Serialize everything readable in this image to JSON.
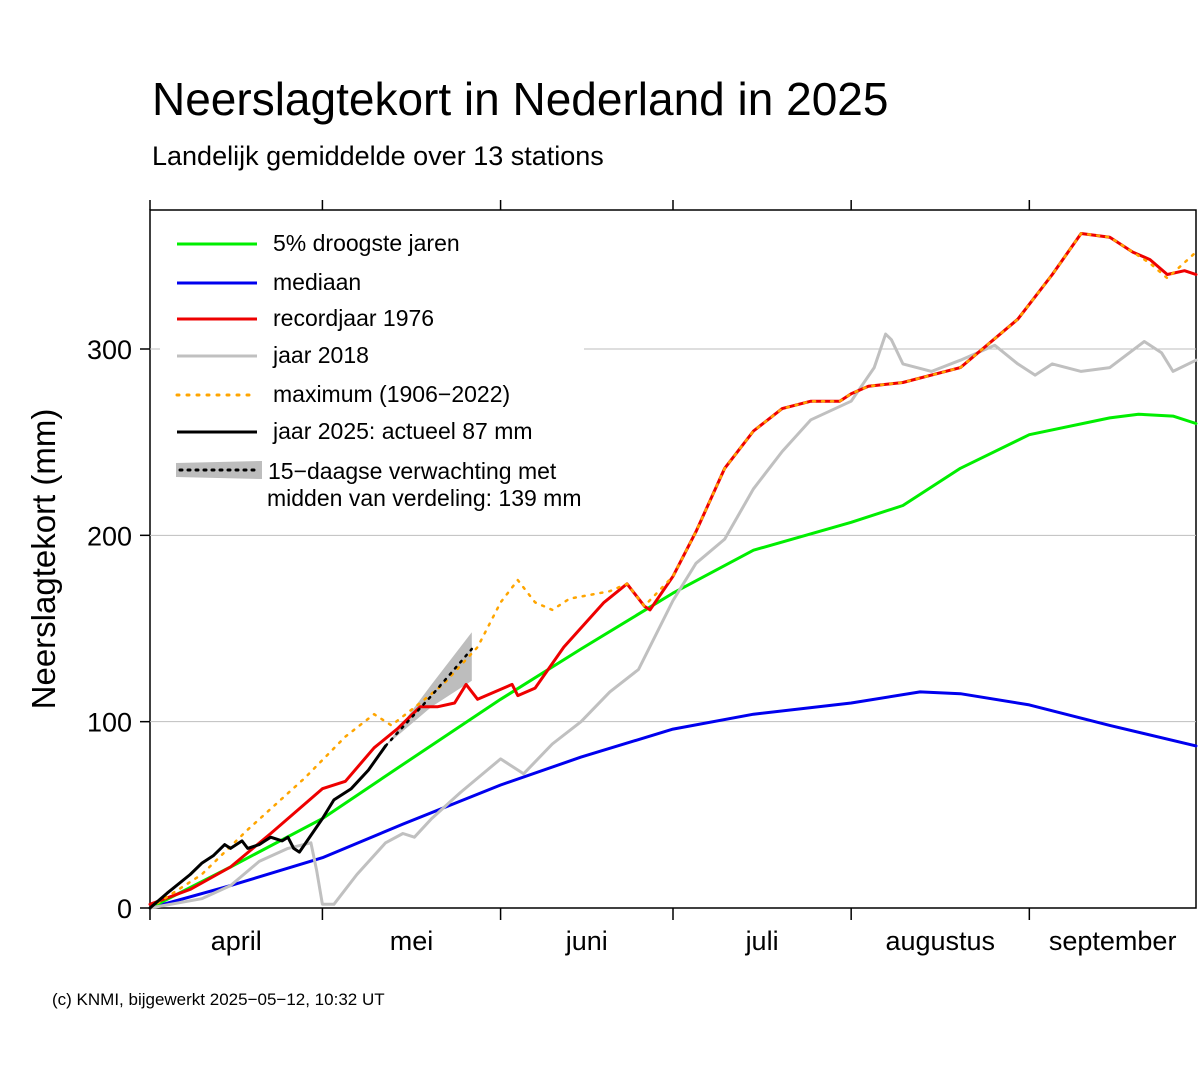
{
  "colors": {
    "p5": "#00ee00",
    "median": "#0000ee",
    "record1976": "#ee0000",
    "y2018": "#c0c0c0",
    "maximum": "#ffa500",
    "y2025": "#000000",
    "forecast_band": "#bdbdbd",
    "grid": "#bebebe"
  },
  "chart_data": {
    "type": "line",
    "title": "Neerslagtekort in Nederland in 2025",
    "subtitle": "Landelijk gemiddelde over 13 stations",
    "xlabel": "",
    "ylabel": "Neerslagtekort (mm)",
    "xlim": [
      "2025-04-01",
      "2025-09-30"
    ],
    "ylim": [
      0,
      375
    ],
    "yticks": [
      0,
      100,
      200,
      300
    ],
    "xticks": [
      "2025-04-01",
      "2025-05-01",
      "2025-06-01",
      "2025-07-01",
      "2025-08-01",
      "2025-09-01"
    ],
    "month_labels": [
      "april",
      "mei",
      "juni",
      "juli",
      "augustus",
      "september"
    ],
    "grid": true,
    "legend_position": "top-left",
    "legend": {
      "p5": "5% droogste jaren",
      "median": "mediaan",
      "record1976": "recordjaar 1976",
      "y2018": "jaar 2018",
      "maximum": "maximum (1906−2022)",
      "y2025": "jaar 2025: actueel 87 mm",
      "forecast_line1": "15−daagse verwachting met",
      "forecast_line2": "midden van verdeling: 139 mm"
    },
    "footer": "(c) KNMI, bijgewerkt 2025−05−12, 10:32 UT",
    "series": [
      {
        "key": "p5",
        "name": "5% droogste jaren",
        "points": [
          [
            "2025-04-01",
            0
          ],
          [
            "2025-04-15",
            22
          ],
          [
            "2025-05-01",
            48
          ],
          [
            "2025-05-15",
            77
          ],
          [
            "2025-06-01",
            112
          ],
          [
            "2025-06-15",
            139
          ],
          [
            "2025-07-01",
            169
          ],
          [
            "2025-07-15",
            192
          ],
          [
            "2025-08-01",
            207
          ],
          [
            "2025-08-10",
            216
          ],
          [
            "2025-08-20",
            236
          ],
          [
            "2025-09-01",
            254
          ],
          [
            "2025-09-15",
            263
          ],
          [
            "2025-09-20",
            265
          ],
          [
            "2025-09-26",
            264
          ],
          [
            "2025-09-30",
            260
          ]
        ]
      },
      {
        "key": "median",
        "name": "mediaan",
        "points": [
          [
            "2025-04-01",
            0
          ],
          [
            "2025-04-15",
            12
          ],
          [
            "2025-05-01",
            27
          ],
          [
            "2025-05-15",
            45
          ],
          [
            "2025-06-01",
            66
          ],
          [
            "2025-06-15",
            81
          ],
          [
            "2025-07-01",
            96
          ],
          [
            "2025-07-15",
            104
          ],
          [
            "2025-08-01",
            110
          ],
          [
            "2025-08-13",
            116
          ],
          [
            "2025-08-20",
            115
          ],
          [
            "2025-09-01",
            109
          ],
          [
            "2025-09-15",
            98
          ],
          [
            "2025-09-30",
            87
          ]
        ]
      },
      {
        "key": "record1976",
        "name": "recordjaar 1976",
        "points": [
          [
            "2025-04-01",
            2
          ],
          [
            "2025-04-08",
            10
          ],
          [
            "2025-04-15",
            22
          ],
          [
            "2025-04-22",
            40
          ],
          [
            "2025-05-01",
            64
          ],
          [
            "2025-05-05",
            68
          ],
          [
            "2025-05-10",
            86
          ],
          [
            "2025-05-14",
            96
          ],
          [
            "2025-05-18",
            108
          ],
          [
            "2025-05-21",
            108
          ],
          [
            "2025-05-24",
            110
          ],
          [
            "2025-05-26",
            120
          ],
          [
            "2025-05-28",
            112
          ],
          [
            "2025-06-03",
            120
          ],
          [
            "2025-06-04",
            114
          ],
          [
            "2025-06-07",
            118
          ],
          [
            "2025-06-12",
            140
          ],
          [
            "2025-06-19",
            164
          ],
          [
            "2025-06-23",
            174
          ],
          [
            "2025-06-26",
            162
          ],
          [
            "2025-06-27",
            160
          ],
          [
            "2025-07-01",
            178
          ],
          [
            "2025-07-05",
            202
          ],
          [
            "2025-07-10",
            236
          ],
          [
            "2025-07-15",
            256
          ],
          [
            "2025-07-20",
            268
          ],
          [
            "2025-07-25",
            272
          ],
          [
            "2025-07-30",
            272
          ],
          [
            "2025-08-01",
            276
          ],
          [
            "2025-08-04",
            280
          ],
          [
            "2025-08-10",
            282
          ],
          [
            "2025-08-20",
            290
          ],
          [
            "2025-08-30",
            316
          ],
          [
            "2025-09-05",
            340
          ],
          [
            "2025-09-10",
            362
          ],
          [
            "2025-09-15",
            360
          ],
          [
            "2025-09-19",
            352
          ],
          [
            "2025-09-22",
            348
          ],
          [
            "2025-09-25",
            340
          ],
          [
            "2025-09-28",
            342
          ],
          [
            "2025-09-30",
            340
          ]
        ]
      },
      {
        "key": "y2018",
        "name": "jaar 2018",
        "points": [
          [
            "2025-04-01",
            0
          ],
          [
            "2025-04-10",
            5
          ],
          [
            "2025-04-15",
            12
          ],
          [
            "2025-04-20",
            25
          ],
          [
            "2025-04-25",
            32
          ],
          [
            "2025-04-29",
            35
          ],
          [
            "2025-04-30",
            20
          ],
          [
            "2025-05-01",
            2
          ],
          [
            "2025-05-03",
            2
          ],
          [
            "2025-05-07",
            18
          ],
          [
            "2025-05-12",
            35
          ],
          [
            "2025-05-15",
            40
          ],
          [
            "2025-05-17",
            38
          ],
          [
            "2025-05-20",
            48
          ],
          [
            "2025-05-25",
            62
          ],
          [
            "2025-06-01",
            80
          ],
          [
            "2025-06-05",
            72
          ],
          [
            "2025-06-10",
            88
          ],
          [
            "2025-06-15",
            100
          ],
          [
            "2025-06-20",
            116
          ],
          [
            "2025-06-25",
            128
          ],
          [
            "2025-07-01",
            165
          ],
          [
            "2025-07-05",
            185
          ],
          [
            "2025-07-10",
            198
          ],
          [
            "2025-07-15",
            225
          ],
          [
            "2025-07-20",
            245
          ],
          [
            "2025-07-25",
            262
          ],
          [
            "2025-08-01",
            272
          ],
          [
            "2025-08-05",
            290
          ],
          [
            "2025-08-07",
            308
          ],
          [
            "2025-08-08",
            305
          ],
          [
            "2025-08-10",
            292
          ],
          [
            "2025-08-15",
            288
          ],
          [
            "2025-08-20",
            294
          ],
          [
            "2025-08-26",
            302
          ],
          [
            "2025-08-30",
            292
          ],
          [
            "2025-09-02",
            286
          ],
          [
            "2025-09-05",
            292
          ],
          [
            "2025-09-10",
            288
          ],
          [
            "2025-09-15",
            290
          ],
          [
            "2025-09-21",
            304
          ],
          [
            "2025-09-24",
            298
          ],
          [
            "2025-09-26",
            288
          ],
          [
            "2025-09-30",
            294
          ]
        ]
      },
      {
        "key": "maximum",
        "name": "maximum (1906−2022)",
        "points": [
          [
            "2025-04-01",
            0
          ],
          [
            "2025-04-10",
            18
          ],
          [
            "2025-04-18",
            42
          ],
          [
            "2025-04-28",
            70
          ],
          [
            "2025-05-05",
            92
          ],
          [
            "2025-05-10",
            104
          ],
          [
            "2025-05-13",
            98
          ],
          [
            "2025-05-18",
            110
          ],
          [
            "2025-05-22",
            120
          ],
          [
            "2025-05-28",
            140
          ],
          [
            "2025-06-01",
            164
          ],
          [
            "2025-06-04",
            176
          ],
          [
            "2025-06-07",
            164
          ],
          [
            "2025-06-10",
            160
          ],
          [
            "2025-06-13",
            166
          ],
          [
            "2025-06-20",
            170
          ],
          [
            "2025-06-23",
            174
          ],
          [
            "2025-06-26",
            162
          ],
          [
            "2025-07-01",
            178
          ],
          [
            "2025-07-05",
            202
          ],
          [
            "2025-07-10",
            236
          ],
          [
            "2025-07-15",
            256
          ],
          [
            "2025-07-20",
            268
          ],
          [
            "2025-07-25",
            272
          ],
          [
            "2025-07-30",
            272
          ],
          [
            "2025-08-01",
            276
          ],
          [
            "2025-08-04",
            280
          ],
          [
            "2025-08-10",
            282
          ],
          [
            "2025-08-20",
            290
          ],
          [
            "2025-08-30",
            316
          ],
          [
            "2025-09-05",
            340
          ],
          [
            "2025-09-10",
            362
          ],
          [
            "2025-09-15",
            360
          ],
          [
            "2025-09-19",
            352
          ],
          [
            "2025-09-22",
            346
          ],
          [
            "2025-09-25",
            338
          ],
          [
            "2025-09-30",
            352
          ]
        ]
      },
      {
        "key": "y2025",
        "name": "jaar 2025: actueel 87 mm",
        "points": [
          [
            "2025-04-01",
            0
          ],
          [
            "2025-04-04",
            8
          ],
          [
            "2025-04-08",
            18
          ],
          [
            "2025-04-10",
            24
          ],
          [
            "2025-04-12",
            28
          ],
          [
            "2025-04-14",
            34
          ],
          [
            "2025-04-15",
            32
          ],
          [
            "2025-04-17",
            36
          ],
          [
            "2025-04-18",
            32
          ],
          [
            "2025-04-20",
            34
          ],
          [
            "2025-04-21",
            36
          ],
          [
            "2025-04-22",
            38
          ],
          [
            "2025-04-24",
            36
          ],
          [
            "2025-04-25",
            38
          ],
          [
            "2025-04-26",
            32
          ],
          [
            "2025-04-27",
            30
          ],
          [
            "2025-05-01",
            48
          ],
          [
            "2025-05-03",
            58
          ],
          [
            "2025-05-06",
            64
          ],
          [
            "2025-05-09",
            74
          ],
          [
            "2025-05-12",
            87
          ]
        ]
      }
    ],
    "forecast": {
      "name": "15−daagse verwachting",
      "median_end": 139,
      "median": [
        [
          "2025-05-12",
          87
        ],
        [
          "2025-05-20",
          114
        ],
        [
          "2025-05-27",
          139
        ]
      ],
      "band_upper": [
        [
          "2025-05-12",
          87
        ],
        [
          "2025-05-20",
          120
        ],
        [
          "2025-05-27",
          148
        ]
      ],
      "band_lower": [
        [
          "2025-05-12",
          87
        ],
        [
          "2025-05-20",
          108
        ],
        [
          "2025-05-27",
          122
        ]
      ]
    }
  }
}
